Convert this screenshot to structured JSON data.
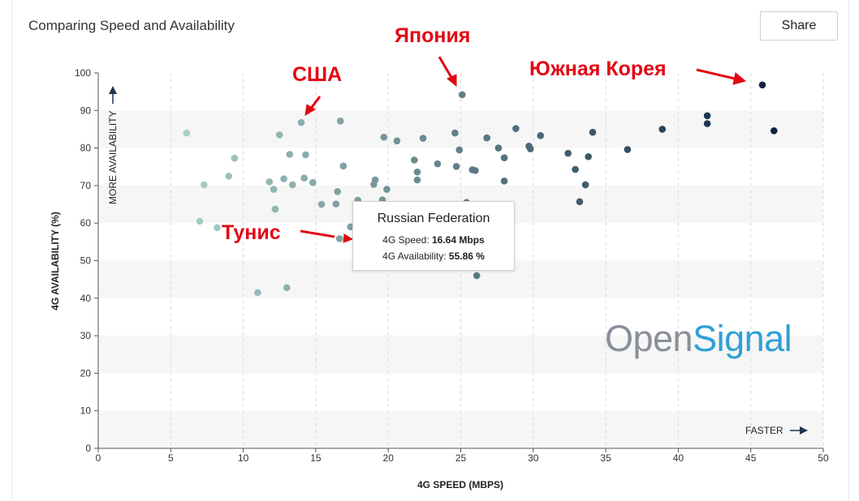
{
  "header": {
    "title": "Comparing Speed and Availability",
    "share_label": "Share"
  },
  "annotations": {
    "japan": "Япония",
    "usa": "США",
    "south_korea": "Южная Корея",
    "tunisia": "Тунис"
  },
  "tooltip": {
    "country": "Russian Federation",
    "speed_label": "4G Speed: ",
    "speed_value": "16.64 Mbps",
    "availability_label": "4G Availability: ",
    "availability_value": "55.86 %"
  },
  "logo": {
    "part1": "Open",
    "part2": "Signal"
  },
  "colors": {
    "accent_red": "#e30613",
    "band": "#f6f6f6",
    "light_dot": "#a9cfc9",
    "dark_dot": "#0f2540"
  },
  "chart_data": {
    "type": "scatter",
    "title": "Comparing Speed and Availability",
    "xlabel": "4G SPEED (MBPS)",
    "ylabel": "4G AVAILABILITY (%)",
    "xlim": [
      0,
      50
    ],
    "ylim": [
      0,
      100
    ],
    "x_ticks": [
      0,
      5,
      10,
      15,
      20,
      25,
      30,
      35,
      40,
      45,
      50
    ],
    "y_ticks": [
      0,
      10,
      20,
      30,
      40,
      50,
      60,
      70,
      80,
      90,
      100
    ],
    "y_hint": "MORE AVAILABILITY",
    "x_hint": "FASTER",
    "grid": true,
    "points": [
      {
        "x": 6.1,
        "y": 84.0
      },
      {
        "x": 7.0,
        "y": 60.5
      },
      {
        "x": 7.3,
        "y": 70.2
      },
      {
        "x": 8.2,
        "y": 58.8
      },
      {
        "x": 9.0,
        "y": 72.5
      },
      {
        "x": 9.4,
        "y": 77.3
      },
      {
        "x": 11.0,
        "y": 41.5
      },
      {
        "x": 11.8,
        "y": 71.0
      },
      {
        "x": 12.1,
        "y": 69.0
      },
      {
        "x": 12.2,
        "y": 63.7
      },
      {
        "x": 12.5,
        "y": 83.5
      },
      {
        "x": 12.8,
        "y": 71.8
      },
      {
        "x": 13.0,
        "y": 42.8
      },
      {
        "x": 13.2,
        "y": 78.3
      },
      {
        "x": 13.4,
        "y": 70.2
      },
      {
        "x": 14.0,
        "y": 86.8
      },
      {
        "x": 14.2,
        "y": 72.0
      },
      {
        "x": 14.3,
        "y": 78.2
      },
      {
        "x": 14.8,
        "y": 70.8
      },
      {
        "x": 15.4,
        "y": 65.0
      },
      {
        "x": 16.4,
        "y": 65.1
      },
      {
        "x": 16.5,
        "y": 68.4
      },
      {
        "x": 16.64,
        "y": 55.86
      },
      {
        "x": 16.7,
        "y": 87.2
      },
      {
        "x": 16.9,
        "y": 75.2
      },
      {
        "x": 17.4,
        "y": 59.0
      },
      {
        "x": 17.9,
        "y": 66.1
      },
      {
        "x": 19.0,
        "y": 70.3
      },
      {
        "x": 19.1,
        "y": 71.5
      },
      {
        "x": 19.6,
        "y": 66.2
      },
      {
        "x": 19.7,
        "y": 82.9
      },
      {
        "x": 19.9,
        "y": 69.0
      },
      {
        "x": 20.6,
        "y": 81.9
      },
      {
        "x": 21.8,
        "y": 76.8
      },
      {
        "x": 22.0,
        "y": 71.5
      },
      {
        "x": 22.0,
        "y": 73.6
      },
      {
        "x": 22.4,
        "y": 82.6
      },
      {
        "x": 23.4,
        "y": 75.8
      },
      {
        "x": 24.6,
        "y": 84.0
      },
      {
        "x": 24.7,
        "y": 75.1
      },
      {
        "x": 24.9,
        "y": 79.5
      },
      {
        "x": 25.1,
        "y": 94.2
      },
      {
        "x": 25.4,
        "y": 65.5
      },
      {
        "x": 25.8,
        "y": 74.2
      },
      {
        "x": 26.0,
        "y": 74.0
      },
      {
        "x": 26.1,
        "y": 46.0
      },
      {
        "x": 26.8,
        "y": 82.7
      },
      {
        "x": 27.6,
        "y": 80.0
      },
      {
        "x": 28.0,
        "y": 77.4
      },
      {
        "x": 28.0,
        "y": 71.2
      },
      {
        "x": 28.8,
        "y": 85.2
      },
      {
        "x": 29.7,
        "y": 80.5
      },
      {
        "x": 29.8,
        "y": 79.8
      },
      {
        "x": 30.5,
        "y": 83.3
      },
      {
        "x": 32.4,
        "y": 78.6
      },
      {
        "x": 32.9,
        "y": 74.3
      },
      {
        "x": 33.2,
        "y": 65.7
      },
      {
        "x": 33.6,
        "y": 70.2
      },
      {
        "x": 33.8,
        "y": 77.7
      },
      {
        "x": 34.1,
        "y": 84.2
      },
      {
        "x": 36.5,
        "y": 79.6
      },
      {
        "x": 38.9,
        "y": 85.0
      },
      {
        "x": 42.0,
        "y": 88.6
      },
      {
        "x": 42.0,
        "y": 86.5
      },
      {
        "x": 45.8,
        "y": 96.8
      },
      {
        "x": 46.6,
        "y": 84.6
      }
    ]
  }
}
